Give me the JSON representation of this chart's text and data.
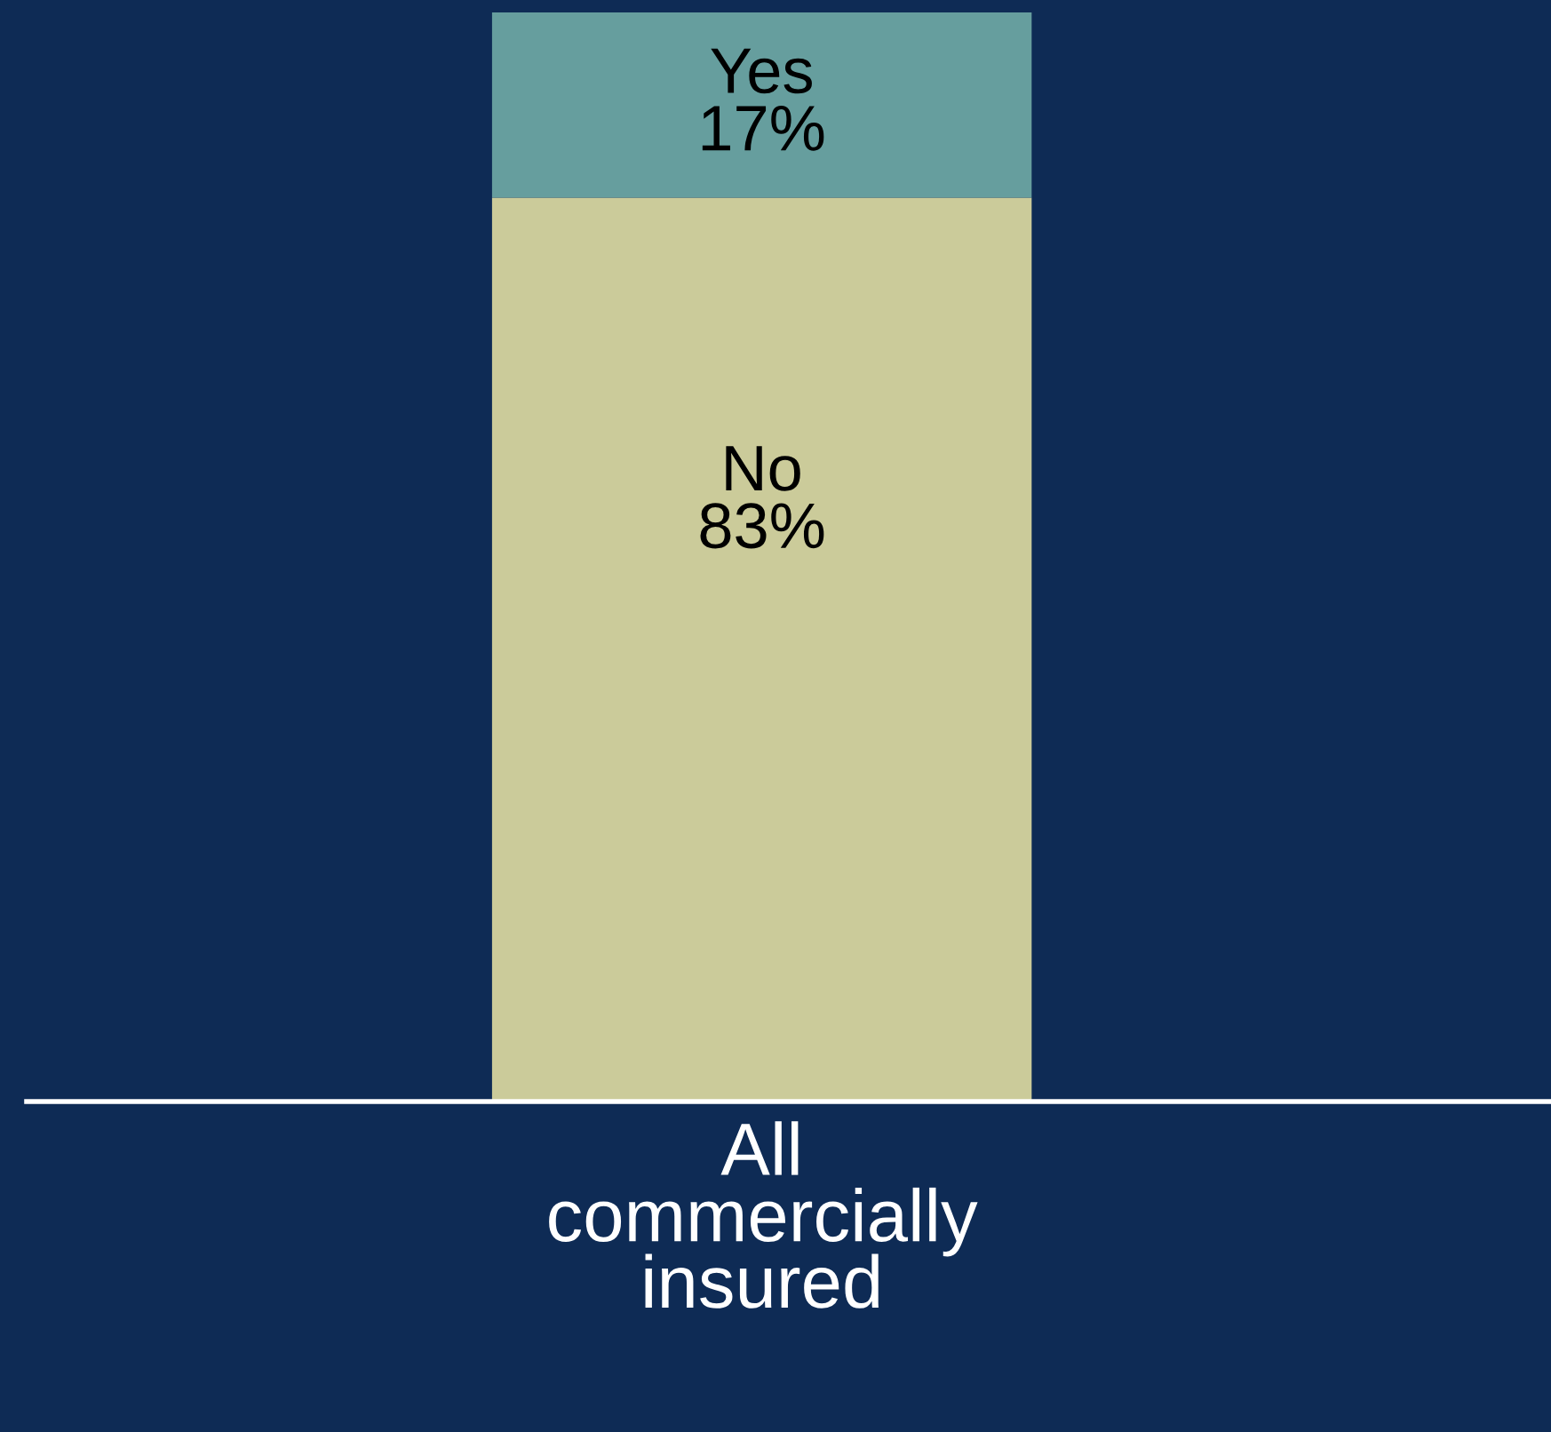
{
  "chart_data": {
    "type": "bar",
    "stacked": true,
    "categories": [
      "All\ncommercially\ninsured"
    ],
    "series": [
      {
        "name": "No",
        "color": "#cbcb9a",
        "values": [
          83
        ],
        "value_labels": [
          "83%"
        ]
      },
      {
        "name": "Yes",
        "color": "#669e9e",
        "values": [
          17
        ],
        "value_labels": [
          "17%"
        ]
      }
    ],
    "grid": false,
    "legend": false,
    "tick_labels": "x"
  }
}
